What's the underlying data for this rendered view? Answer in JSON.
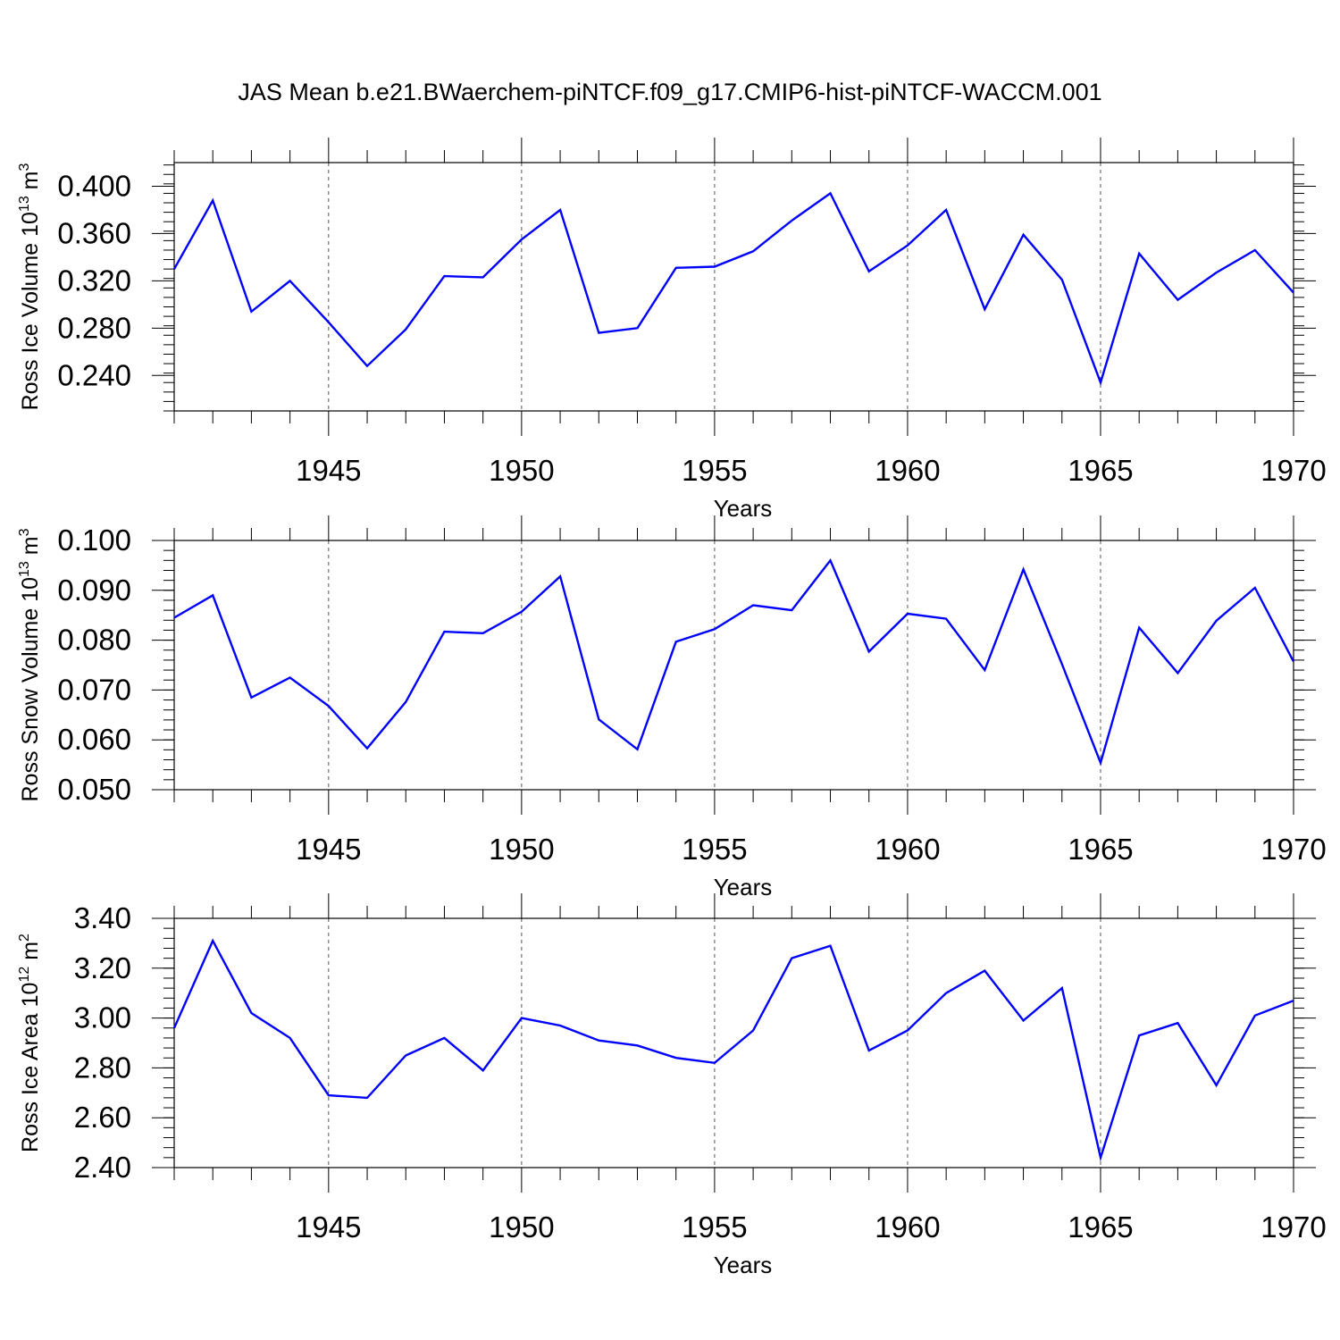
{
  "title": "JAS Mean b.e21.BWaerchem-piNTCF.f09_g17.CMIP6-hist-piNTCF-WACCM.001",
  "chart_data": [
    {
      "type": "line",
      "ylabel": "Ross Ice Volume",
      "yunit_base": "10",
      "yunit_exp": "13",
      "yunit_tail": "m",
      "yunit_tail_exp": "3",
      "xlabel": "Years",
      "xlim": [
        1941,
        1970
      ],
      "ylim": [
        0.21,
        0.42
      ],
      "yticks": [
        0.24,
        0.28,
        0.32,
        0.36,
        0.4
      ],
      "ytick_labels": [
        "0.240",
        "0.280",
        "0.320",
        "0.360",
        "0.400"
      ],
      "xticks": [
        1945,
        1950,
        1955,
        1960,
        1965,
        1970
      ],
      "xtick_labels": [
        "1945",
        "1950",
        "1955",
        "1960",
        "1965",
        "1970"
      ],
      "grid": "vertical dashed at major x ticks",
      "line_color": "#0000ff",
      "x": [
        1941,
        1942,
        1943,
        1944,
        1945,
        1946,
        1947,
        1948,
        1949,
        1950,
        1951,
        1952,
        1953,
        1954,
        1955,
        1956,
        1957,
        1958,
        1959,
        1960,
        1961,
        1962,
        1963,
        1964,
        1965,
        1966,
        1967,
        1968,
        1969,
        1970
      ],
      "values": [
        0.33,
        0.388,
        0.294,
        0.32,
        0.285,
        0.248,
        0.279,
        0.324,
        0.323,
        0.355,
        0.38,
        0.276,
        0.28,
        0.331,
        0.332,
        0.345,
        0.371,
        0.394,
        0.328,
        0.35,
        0.38,
        0.296,
        0.359,
        0.321,
        0.234,
        0.343,
        0.304,
        0.327,
        0.346,
        0.31
      ]
    },
    {
      "type": "line",
      "ylabel": "Ross Snow Volume",
      "yunit_base": "10",
      "yunit_exp": "13",
      "yunit_tail": "m",
      "yunit_tail_exp": "3",
      "xlabel": "Years",
      "xlim": [
        1941,
        1970
      ],
      "ylim": [
        0.05,
        0.1
      ],
      "yticks": [
        0.05,
        0.06,
        0.07,
        0.08,
        0.09,
        0.1
      ],
      "ytick_labels": [
        "0.050",
        "0.060",
        "0.070",
        "0.080",
        "0.090",
        "0.100"
      ],
      "xticks": [
        1945,
        1950,
        1955,
        1960,
        1965,
        1970
      ],
      "xtick_labels": [
        "1945",
        "1950",
        "1955",
        "1960",
        "1965",
        "1970"
      ],
      "grid": "vertical dashed at major x ticks",
      "line_color": "#0000ff",
      "x": [
        1941,
        1942,
        1943,
        1944,
        1945,
        1946,
        1947,
        1948,
        1949,
        1950,
        1951,
        1952,
        1953,
        1954,
        1955,
        1956,
        1957,
        1958,
        1959,
        1960,
        1961,
        1962,
        1963,
        1964,
        1965,
        1966,
        1967,
        1968,
        1969,
        1970
      ],
      "values": [
        0.0845,
        0.089,
        0.0685,
        0.0725,
        0.0668,
        0.0583,
        0.0676,
        0.0817,
        0.0814,
        0.0857,
        0.0928,
        0.0641,
        0.0581,
        0.0797,
        0.0822,
        0.087,
        0.086,
        0.096,
        0.0777,
        0.0853,
        0.0843,
        0.074,
        0.0942,
        0.0752,
        0.0554,
        0.0825,
        0.0734,
        0.0839,
        0.0905,
        0.0757
      ]
    },
    {
      "type": "line",
      "ylabel": "Ross Ice Area",
      "yunit_base": "10",
      "yunit_exp": "12",
      "yunit_tail": "m",
      "yunit_tail_exp": "2",
      "xlabel": "Years",
      "xlim": [
        1941,
        1970
      ],
      "ylim": [
        2.4,
        3.4
      ],
      "yticks": [
        2.4,
        2.6,
        2.8,
        3.0,
        3.2,
        3.4
      ],
      "ytick_labels": [
        "2.40",
        "2.60",
        "2.80",
        "3.00",
        "3.20",
        "3.40"
      ],
      "xticks": [
        1945,
        1950,
        1955,
        1960,
        1965,
        1970
      ],
      "xtick_labels": [
        "1945",
        "1950",
        "1955",
        "1960",
        "1965",
        "1970"
      ],
      "grid": "vertical dashed at major x ticks",
      "line_color": "#0000ff",
      "x": [
        1941,
        1942,
        1943,
        1944,
        1945,
        1946,
        1947,
        1948,
        1949,
        1950,
        1951,
        1952,
        1953,
        1954,
        1955,
        1956,
        1957,
        1958,
        1959,
        1960,
        1961,
        1962,
        1963,
        1964,
        1965,
        1966,
        1967,
        1968,
        1969,
        1970
      ],
      "values": [
        2.96,
        3.31,
        3.02,
        2.92,
        2.69,
        2.68,
        2.85,
        2.92,
        2.79,
        3.0,
        2.97,
        2.91,
        2.89,
        2.84,
        2.82,
        2.95,
        3.24,
        3.29,
        2.87,
        2.95,
        3.1,
        3.19,
        2.99,
        3.12,
        2.44,
        2.93,
        2.98,
        2.73,
        3.01,
        3.07
      ]
    }
  ]
}
